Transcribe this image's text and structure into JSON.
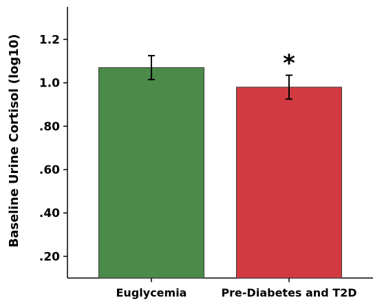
{
  "chart_data": {
    "type": "bar",
    "categories": [
      "Euglycemia",
      "Pre-Diabetes and T2D"
    ],
    "values": [
      1.07,
      0.98
    ],
    "error": [
      0.055,
      0.055
    ],
    "colors": [
      "#4b8a49",
      "#d23a42"
    ],
    "significance": [
      "",
      "*"
    ],
    "ylabel": "Baseline Urine Cortisol (log10)",
    "xlabel": "",
    "title": "",
    "ylim": [
      0.1,
      1.35
    ],
    "yticks": [
      0.2,
      0.4,
      0.6,
      0.8,
      1.0,
      1.2
    ],
    "ytick_labels": [
      ".20",
      ".40",
      ".60",
      ".80",
      "1.0",
      "1.2"
    ],
    "grid": false
  }
}
